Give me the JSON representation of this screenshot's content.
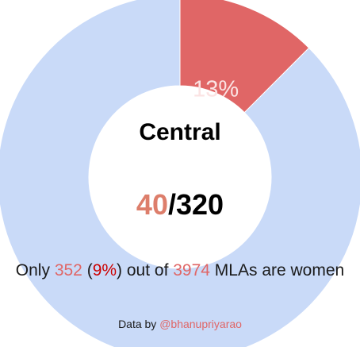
{
  "colors": {
    "women": "#e06666",
    "men": "#c9daf8",
    "number_red": "#e06666",
    "pct_red": "#cc0000",
    "ratio_women": "#dd7e6b",
    "link": "#e06666"
  },
  "chart_data": {
    "type": "pie",
    "variant": "donut",
    "title": "Central",
    "slices": [
      {
        "value": 40,
        "label": "13%",
        "color": "#e06666"
      },
      {
        "value": 280,
        "label": "",
        "color": "#c9daf8"
      }
    ]
  },
  "ratio": {
    "women": "40",
    "separator": "/",
    "total": "320"
  },
  "caption": {
    "pre": "Only ",
    "women_count": "352",
    "paren_open": " (",
    "women_pct": "9%",
    "paren_close": ") out of ",
    "total_count": "3974",
    "post": " MLAs are women"
  },
  "credit": {
    "prefix": "Data by ",
    "handle": "@bhanupriyarao"
  }
}
